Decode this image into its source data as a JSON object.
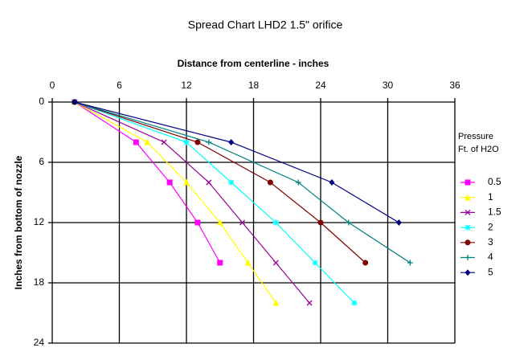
{
  "chart_data": {
    "type": "line",
    "title": "Spread Chart LHD2 1.5\" orifice",
    "x_label": "Distance from centerline - inches",
    "y_label": "Inches from bottom of nozzle",
    "x_axis_position": "top",
    "y_inverted": true,
    "xlim": [
      0,
      36
    ],
    "xticks": [
      0,
      6,
      12,
      18,
      24,
      30,
      36
    ],
    "ylim": [
      0,
      24
    ],
    "yticks": [
      0,
      6,
      12,
      18,
      24
    ],
    "grid": true,
    "legend_title": [
      "Pressure",
      "Ft. of H2O"
    ],
    "legend_position": "right",
    "series": [
      {
        "name": "0.5",
        "color": "#ff00ff",
        "marker": "square",
        "x": [
          2,
          7.5,
          10.5,
          13,
          15
        ],
        "values": [
          0,
          4,
          8,
          12,
          16
        ]
      },
      {
        "name": "1",
        "color": "#ffff00",
        "marker": "triangle",
        "x": [
          2,
          8.5,
          12,
          15,
          17.5,
          20
        ],
        "values": [
          0,
          4,
          8,
          12,
          16,
          20
        ]
      },
      {
        "name": "1.5",
        "color": "#990099",
        "marker": "x",
        "x": [
          2,
          10,
          14,
          17,
          20,
          23
        ],
        "values": [
          0,
          4,
          8,
          12,
          16,
          20
        ]
      },
      {
        "name": "2",
        "color": "#00ffff",
        "marker": "star",
        "x": [
          2,
          12,
          16,
          20,
          23.5,
          27
        ],
        "values": [
          0,
          4,
          8,
          12,
          16,
          20
        ]
      },
      {
        "name": "3",
        "color": "#800000",
        "marker": "circle",
        "x": [
          2,
          13,
          19.5,
          24,
          28
        ],
        "values": [
          0,
          4,
          8,
          12,
          16
        ]
      },
      {
        "name": "4",
        "color": "#008080",
        "marker": "plus",
        "x": [
          2,
          14,
          22,
          26.5,
          32
        ],
        "values": [
          0,
          4,
          8,
          12,
          16
        ]
      },
      {
        "name": "5",
        "color": "#000080",
        "marker": "diamond",
        "x": [
          2,
          16,
          25,
          31
        ],
        "values": [
          0,
          4,
          8,
          12
        ]
      }
    ]
  }
}
